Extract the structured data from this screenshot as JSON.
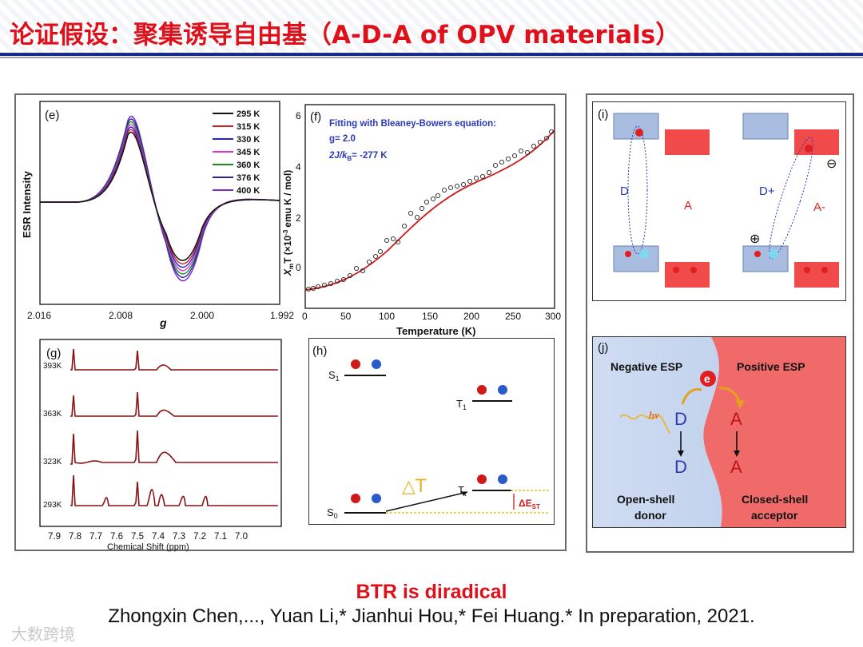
{
  "slide": {
    "title": "论证假设：聚集诱导自由基（A-D-A of OPV materials）",
    "conclusion": "BTR is diradical",
    "citation": "Zhongxin Chen,..., Yuan Li,* Jianhui Hou,* Fei Huang.* In preparation, 2021.",
    "watermark": "大数跨境"
  },
  "colors": {
    "title_red": "#e0101a",
    "rule_blue": "#1a2a8a",
    "donor_blue": "#a8bde0",
    "acceptor_red": "#f04a4a"
  },
  "panel_e": {
    "label": "(e)",
    "ylabel": "ESR Intensity",
    "xlabel": "g",
    "xticks": [
      "2.016",
      "2.008",
      "2.000",
      "1.992"
    ],
    "legend": [
      "295 K",
      "315 K",
      "330 K",
      "345 K",
      "360 K",
      "376 K",
      "400 K"
    ]
  },
  "panel_f": {
    "label": "(f)",
    "annotation_1": "Fitting with Bleaney-Bowers equation:",
    "annotation_2": "g= 2.0",
    "annotation_3_prefix": "2J/k",
    "annotation_3_sub": "B",
    "annotation_3_suffix": "= -277 K",
    "ylabel_sym": "X",
    "ylabel_sub": "m",
    "ylabel_main": "T (×10",
    "ylabel_exp": "-3",
    "ylabel_tail": "emu K / mol)",
    "xlabel": "Temperature (K)",
    "xticks": [
      "0",
      "50",
      "100",
      "150",
      "200",
      "250",
      "300"
    ],
    "yticks": [
      "0",
      "2",
      "4",
      "6"
    ]
  },
  "panel_g": {
    "label": "(g)",
    "xlabel": "Chemical Shift (ppm)",
    "traces": [
      "393K",
      "363K",
      "323K",
      "293K"
    ],
    "xticks": [
      "7.9",
      "7.8",
      "7.7",
      "7.6",
      "7.5",
      "7.4",
      "7.3",
      "7.2",
      "7.1",
      "7.0"
    ]
  },
  "panel_h": {
    "label": "(h)",
    "s1": "S",
    "s1_sub": "1",
    "t1": "T",
    "t1_sub": "1",
    "s0": "S",
    "s0_sub": "0",
    "tt": "T",
    "tt_sub": "t",
    "delta_t": "△T",
    "delta_est": "ΔE",
    "delta_est_sub": "ST"
  },
  "panel_i": {
    "label": "(i)",
    "d": "D",
    "a": "A",
    "d_plus": "D+",
    "a_minus": "A-",
    "minus_sign": "⊖",
    "plus_sign": "⊕"
  },
  "panel_j": {
    "label": "(j)",
    "neg_esp": "Negative ESP",
    "pos_esp": "Positive ESP",
    "electron": "e",
    "hv": "hv",
    "d_dots": "D",
    "a_1": "A",
    "d_cation": "D",
    "a_anion": "A",
    "donor_1": "Open-shell",
    "donor_2": "donor",
    "acceptor_1": "Closed-shell",
    "acceptor_2": "acceptor"
  }
}
